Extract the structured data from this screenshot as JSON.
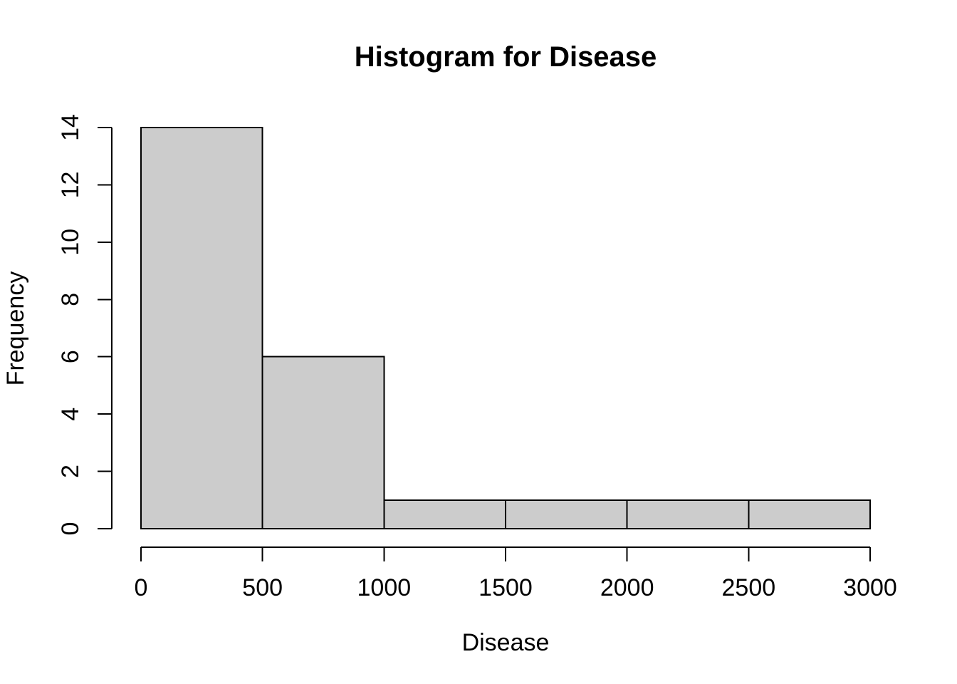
{
  "chart_data": {
    "type": "bar",
    "chart_kind": "histogram",
    "title": "Histogram for Disease",
    "xlabel": "Disease",
    "ylabel": "Frequency",
    "bin_edges": [
      0,
      500,
      1000,
      1500,
      2000,
      2500,
      3000
    ],
    "counts": [
      14,
      6,
      1,
      1,
      1,
      1
    ],
    "x_ticks": [
      0,
      500,
      1000,
      1500,
      2000,
      2500,
      3000
    ],
    "x_tick_labels": [
      "0",
      "500",
      "1000",
      "1500",
      "2000",
      "2500",
      "3000"
    ],
    "y_ticks": [
      0,
      2,
      4,
      6,
      8,
      10,
      12,
      14
    ],
    "y_tick_labels": [
      "0",
      "2",
      "4",
      "6",
      "8",
      "10",
      "12",
      "14"
    ],
    "xlim": [
      0,
      3000
    ],
    "ylim": [
      0,
      14
    ],
    "grid": false,
    "colors": {
      "bar_fill": "#cccccc",
      "bar_stroke": "#000000",
      "axis": "#000000",
      "text": "#000000",
      "background": "#ffffff"
    }
  }
}
